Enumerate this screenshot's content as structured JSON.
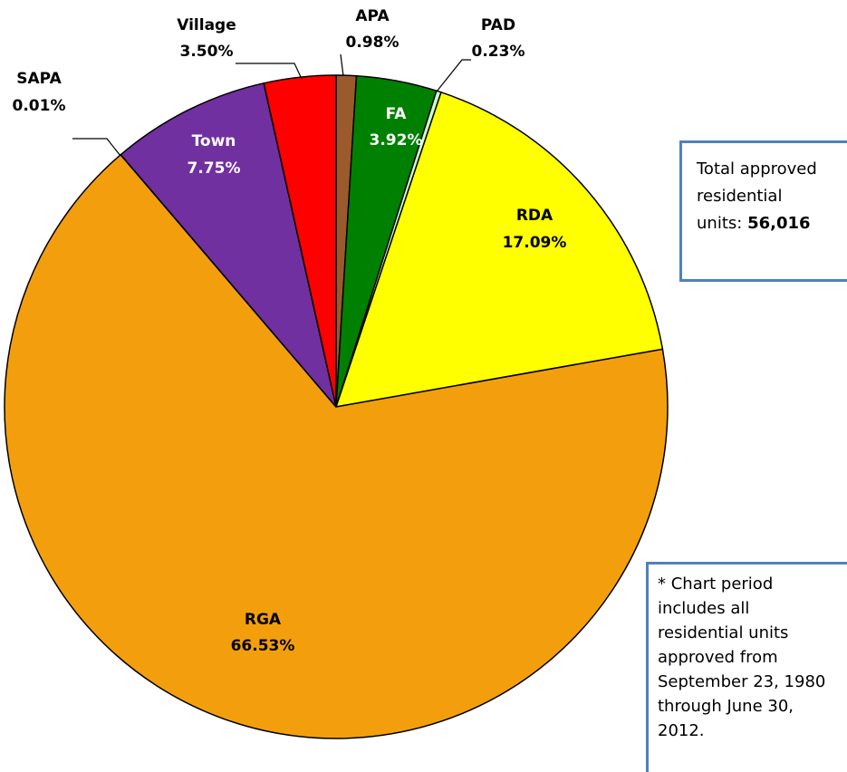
{
  "chart_data": {
    "type": "pie",
    "categories": [
      "APA",
      "FA",
      "PAD",
      "RDA",
      "RGA",
      "SAPA",
      "Town",
      "Village"
    ],
    "values": [
      0.98,
      3.92,
      0.23,
      17.09,
      66.53,
      0.01,
      7.75,
      3.5
    ],
    "value_labels": [
      "0.98%",
      "3.92%",
      "0.23%",
      "17.09%",
      "66.53%",
      "0.01%",
      "7.75%",
      "3.50%"
    ],
    "colors": [
      "#9b5a2c",
      "#008000",
      "#ccffcc",
      "#ffff00",
      "#f39f0d",
      "#f39f0d",
      "#7030a0",
      "#ff0000"
    ],
    "total_label": "Total approved residential units:",
    "total_value": "56,016",
    "note": "* Chart period includes all residential units approved from September 23, 1980 through June 30, 2012."
  }
}
